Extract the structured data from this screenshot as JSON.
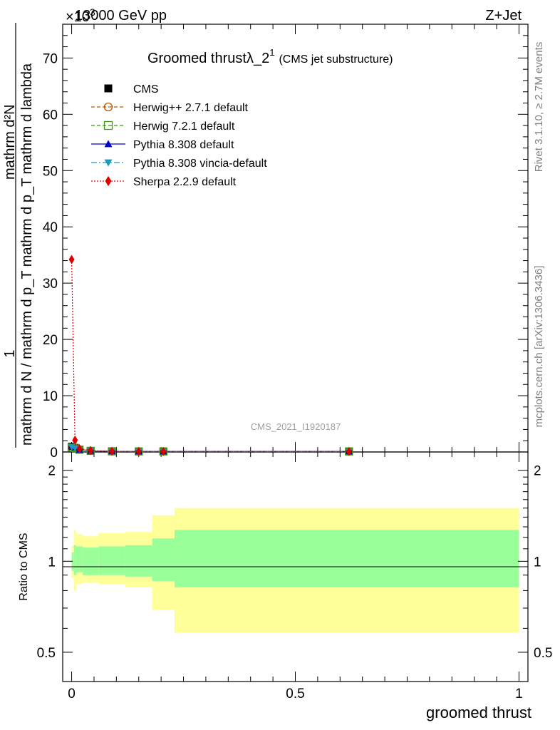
{
  "header": {
    "energy": "13000 GeV pp",
    "process": "Z+Jet",
    "exponent": "×10",
    "exponent_power": "3"
  },
  "plot_title": {
    "main": "Groomed thrustλ_2",
    "superscript": "1",
    "sub": "(CMS jet substructure)"
  },
  "side_labels": {
    "rivet": "Rivet 3.1.10, ≥ 2.7M events",
    "mcplots": "mcplots.cern.ch [arXiv:1306.3436]"
  },
  "watermark": "CMS_2021_I1920187",
  "y_label": {
    "numerator": "1",
    "denominator": "mathrm d N / mathrm d p_T mathrm d p_T mathrm d lambda",
    "top": "mathrm d²N"
  },
  "ratio_label": "Ratio to CMS",
  "x_label": "groomed thrust",
  "legend": [
    {
      "name": "CMS",
      "color": "#000000",
      "marker": "square",
      "line": "none"
    },
    {
      "name": "Herwig++ 2.7.1 default",
      "color": "#b05a00",
      "marker": "circle-open",
      "line": "dashed"
    },
    {
      "name": "Herwig 7.2.1 default",
      "color": "#3a9a10",
      "marker": "square-open",
      "line": "dashed"
    },
    {
      "name": "Pythia 8.308 default",
      "color": "#0000cc",
      "marker": "triangle",
      "line": "solid"
    },
    {
      "name": "Pythia 8.308 vincia-default",
      "color": "#1a9ab5",
      "marker": "triangle-down",
      "line": "dashdot"
    },
    {
      "name": "Sherpa 2.2.9 default",
      "color": "#dd0000",
      "marker": "diamond",
      "line": "dotted"
    }
  ],
  "chart_data": {
    "type": "line",
    "xlabel": "groomed thrust",
    "ylabel": "1 / mathrm d N / mathrm d p_T mathrm d p_T mathrm d lambda",
    "xlim": [
      -0.02,
      1.02
    ],
    "ylim": [
      0,
      76
    ],
    "y_multiplier": "×10³",
    "x_ticks": [
      "0",
      "0.5",
      "1"
    ],
    "y_ticks": [
      "0",
      "10",
      "20",
      "30",
      "40",
      "50",
      "60",
      "70"
    ],
    "series": [
      {
        "name": "CMS",
        "x": [
          0.0,
          0.0075,
          0.0175,
          0.0425,
          0.09,
          0.15,
          0.205,
          0.62
        ],
        "y": [
          1.0,
          0.8,
          0.4,
          0.2,
          0.12,
          0.1,
          0.1,
          0.1
        ]
      },
      {
        "name": "Herwig++ 2.7.1 default",
        "x": [
          0.0,
          0.0075,
          0.0175,
          0.0425,
          0.09,
          0.15,
          0.205,
          0.62
        ],
        "y": [
          0.8,
          0.7,
          0.4,
          0.2,
          0.12,
          0.1,
          0.1,
          0.1
        ]
      },
      {
        "name": "Herwig 7.2.1 default",
        "x": [
          0.0,
          0.0075,
          0.0175,
          0.0425,
          0.09,
          0.15,
          0.205,
          0.62
        ],
        "y": [
          0.8,
          0.7,
          0.4,
          0.2,
          0.12,
          0.1,
          0.1,
          0.1
        ]
      },
      {
        "name": "Pythia 8.308 default",
        "x": [
          0.0,
          0.0075,
          0.0175,
          0.0425,
          0.09,
          0.15,
          0.205,
          0.62
        ],
        "y": [
          1.0,
          0.8,
          0.4,
          0.2,
          0.12,
          0.1,
          0.1,
          0.1
        ]
      },
      {
        "name": "Pythia 8.308 vincia-default",
        "x": [
          0.0,
          0.0075,
          0.0175,
          0.0425,
          0.09,
          0.15,
          0.205,
          0.62
        ],
        "y": [
          0.9,
          0.7,
          0.4,
          0.2,
          0.12,
          0.1,
          0.1,
          0.1
        ]
      },
      {
        "name": "Sherpa 2.2.9 default",
        "x": [
          0.0,
          0.0075,
          0.0175,
          0.0425,
          0.09,
          0.15,
          0.205,
          0.62
        ],
        "y": [
          34.2,
          2.1,
          0.6,
          0.25,
          0.13,
          0.1,
          0.1,
          0.1
        ]
      }
    ],
    "ratio": {
      "ylabel": "Ratio to CMS",
      "ylim": [
        0.4,
        2.3
      ],
      "y_ticks": [
        "0.5",
        "1",
        "2"
      ],
      "bins": [
        {
          "x0": 0.0,
          "x1": 0.005,
          "stat_lo": 0.93,
          "stat_hi": 1.07,
          "tot_lo": 0.88,
          "tot_hi": 1.13
        },
        {
          "x0": 0.005,
          "x1": 0.01,
          "stat_lo": 0.9,
          "stat_hi": 1.13,
          "tot_lo": 0.8,
          "tot_hi": 1.27
        },
        {
          "x0": 0.01,
          "x1": 0.025,
          "stat_lo": 0.92,
          "stat_hi": 1.12,
          "tot_lo": 0.84,
          "tot_hi": 1.23
        },
        {
          "x0": 0.025,
          "x1": 0.06,
          "stat_lo": 0.9,
          "stat_hi": 1.11,
          "tot_lo": 0.85,
          "tot_hi": 1.21
        },
        {
          "x0": 0.06,
          "x1": 0.12,
          "stat_lo": 0.9,
          "stat_hi": 1.12,
          "tot_lo": 0.84,
          "tot_hi": 1.24
        },
        {
          "x0": 0.12,
          "x1": 0.18,
          "stat_lo": 0.89,
          "stat_hi": 1.13,
          "tot_lo": 0.82,
          "tot_hi": 1.25
        },
        {
          "x0": 0.18,
          "x1": 0.23,
          "stat_lo": 0.86,
          "stat_hi": 1.19,
          "tot_lo": 0.69,
          "tot_hi": 1.42
        },
        {
          "x0": 0.23,
          "x1": 1.0,
          "stat_lo": 0.82,
          "stat_hi": 1.27,
          "tot_lo": 0.58,
          "tot_hi": 1.5
        }
      ]
    },
    "colors": {
      "stat_band": "#99ff99",
      "total_band": "#ffff99"
    },
    "grid": false,
    "legend_position": "top-left"
  }
}
